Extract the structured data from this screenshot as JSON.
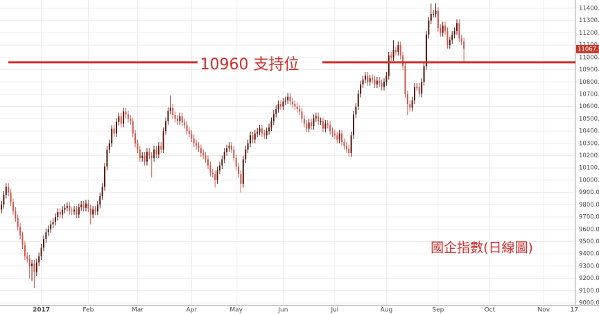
{
  "chart_data": {
    "type": "candlestick",
    "up_color": "#5a1a10",
    "down_color": "#d0574c",
    "grid_color": "#ececec",
    "support_color": "#d02f2b",
    "xlim": [
      -0.6,
      244.5
    ],
    "xticks": [
      {
        "value": 17,
        "label": "2017"
      },
      {
        "value": 37,
        "label": "Feb"
      },
      {
        "value": 58,
        "label": "Mar"
      },
      {
        "value": 81,
        "label": "Apr"
      },
      {
        "value": 100,
        "label": "May"
      },
      {
        "value": 120,
        "label": "Jun"
      },
      {
        "value": 142,
        "label": "Jul"
      },
      {
        "value": 164,
        "label": "Aug"
      },
      {
        "value": 186,
        "label": "Sep"
      },
      {
        "value": 208,
        "label": "Oct"
      },
      {
        "value": 231,
        "label": "Nov"
      },
      {
        "value": 244,
        "label": "17"
      }
    ],
    "ylim": [
      9000,
      11400
    ],
    "yticks": [
      {
        "value": 9000,
        "label": "9000.00"
      },
      {
        "value": 9100,
        "label": "9100.00"
      },
      {
        "value": 9200,
        "label": "9200.00"
      },
      {
        "value": 9300,
        "label": "9300.00"
      },
      {
        "value": 9400,
        "label": "9400.00"
      },
      {
        "value": 9500,
        "label": "9500.00"
      },
      {
        "value": 9600,
        "label": "9600.00"
      },
      {
        "value": 9700,
        "label": "9700.00"
      },
      {
        "value": 9800,
        "label": "9800.00"
      },
      {
        "value": 9900,
        "label": "9900.00"
      },
      {
        "value": 10000,
        "label": "10000.00"
      },
      {
        "value": 10100,
        "label": "10100.00"
      },
      {
        "value": 10200,
        "label": "10200.00"
      },
      {
        "value": 10300,
        "label": "10300.00"
      },
      {
        "value": 10400,
        "label": "10400.00"
      },
      {
        "value": 10500,
        "label": "10500.00"
      },
      {
        "value": 10600,
        "label": "10600.00"
      },
      {
        "value": 10700,
        "label": "10700.00"
      },
      {
        "value": 10800,
        "label": "10800.00"
      },
      {
        "value": 10900,
        "label": "10900.00"
      },
      {
        "value": 11000,
        "label": "11000.00"
      },
      {
        "value": 11100,
        "label": "11100.00"
      },
      {
        "value": 11200,
        "label": "11200.00"
      },
      {
        "value": 11300,
        "label": "11300.00"
      },
      {
        "value": 11400,
        "label": "11400.00"
      }
    ],
    "last_price": 11067.55,
    "support": {
      "value": 10960,
      "label": "10960 支持位"
    },
    "annotation": "國企指數(日線圖)",
    "open": [
      9760,
      9800,
      9880,
      9945,
      9900,
      9820,
      9750,
      9690,
      9620,
      9550,
      9470,
      9380,
      9360,
      9300,
      9320,
      9250,
      9330,
      9380,
      9450,
      9520,
      9575,
      9600,
      9640,
      9660,
      9700,
      9740,
      9720,
      9760,
      9775,
      9790,
      9750,
      9745,
      9760,
      9720,
      9780,
      9800,
      9775,
      9810,
      9770,
      9720,
      9760,
      9745,
      9800,
      9870,
      9945,
      10110,
      10250,
      10300,
      10420,
      10380,
      10475,
      10520,
      10460,
      10560,
      10535,
      10500,
      10480,
      10380,
      10300,
      10250,
      10180,
      10200,
      10150,
      10230,
      10200,
      10180,
      10250,
      10210,
      10280,
      10250,
      10400,
      10480,
      10565,
      10590,
      10530,
      10500,
      10480,
      10520,
      10470,
      10450,
      10400,
      10380,
      10340,
      10300,
      10280,
      10260,
      10220,
      10200,
      10170,
      10120,
      10060,
      10050,
      10000,
      10080,
      10120,
      10170,
      10230,
      10260,
      10280,
      10250,
      10180,
      10110,
      10050,
      9970,
      10170,
      10250,
      10300,
      10365,
      10330,
      10380,
      10395,
      10420,
      10380,
      10365,
      10400,
      10430,
      10480,
      10540,
      10580,
      10620,
      10600,
      10640,
      10650,
      10680,
      10640,
      10620,
      10600,
      10580,
      10560,
      10500,
      10460,
      10420,
      10470,
      10440,
      10505,
      10520,
      10480,
      10480,
      10420,
      10460,
      10450,
      10400,
      10380,
      10365,
      10330,
      10380,
      10310,
      10280,
      10255,
      10220,
      10365,
      10535,
      10600,
      10705,
      10780,
      10820,
      10850,
      10800,
      10830,
      10820,
      10780,
      10810,
      10790,
      10760,
      10800,
      10850,
      11015,
      11000,
      11060,
      11045,
      11100,
      11015,
      10930,
      10700,
      10620,
      10590,
      10650,
      10760,
      10760,
      10705,
      10800,
      10930,
      11185,
      11300,
      11355,
      11355,
      11380,
      11240,
      11200,
      11260,
      11215,
      11100,
      11140,
      11185,
      11215,
      11280,
      11155,
      11130
    ],
    "high": [
      9830,
      9910,
      9975,
      9975,
      9930,
      9850,
      9780,
      9720,
      9650,
      9580,
      9500,
      9410,
      9390,
      9350,
      9350,
      9360,
      9410,
      9480,
      9550,
      9605,
      9630,
      9670,
      9690,
      9730,
      9770,
      9770,
      9790,
      9805,
      9820,
      9820,
      9780,
      9790,
      9790,
      9810,
      9830,
      9830,
      9840,
      9840,
      9800,
      9790,
      9790,
      9830,
      9900,
      9975,
      10140,
      10280,
      10330,
      10450,
      10450,
      10505,
      10550,
      10550,
      10590,
      10590,
      10565,
      10530,
      10510,
      10410,
      10330,
      10280,
      10230,
      10230,
      10260,
      10260,
      10230,
      10280,
      10280,
      10310,
      10310,
      10430,
      10510,
      10595,
      10690,
      10620,
      10560,
      10530,
      10550,
      10550,
      10500,
      10480,
      10430,
      10410,
      10370,
      10330,
      10310,
      10290,
      10250,
      10230,
      10200,
      10150,
      10090,
      10080,
      10110,
      10150,
      10200,
      10260,
      10290,
      10310,
      10310,
      10280,
      10210,
      10140,
      10080,
      10200,
      10280,
      10330,
      10395,
      10395,
      10410,
      10425,
      10450,
      10450,
      10410,
      10430,
      10460,
      10510,
      10570,
      10610,
      10650,
      10650,
      10670,
      10680,
      10710,
      10710,
      10670,
      10650,
      10630,
      10610,
      10590,
      10530,
      10490,
      10500,
      10500,
      10535,
      10550,
      10550,
      10510,
      10510,
      10490,
      10490,
      10480,
      10430,
      10410,
      10395,
      10410,
      10410,
      10340,
      10310,
      10285,
      10395,
      10565,
      10630,
      10735,
      10810,
      10850,
      10880,
      10880,
      10860,
      10860,
      10850,
      10840,
      10840,
      10820,
      10830,
      10880,
      11045,
      11045,
      11140,
      11090,
      11130,
      11130,
      11045,
      10960,
      10730,
      10650,
      10680,
      10790,
      10790,
      10790,
      10830,
      10960,
      11215,
      11330,
      11440,
      11385,
      11440,
      11410,
      11270,
      11290,
      11290,
      11245,
      11170,
      11215,
      11245,
      11310,
      11310,
      11185,
      11160
    ],
    "low": [
      9730,
      9770,
      9850,
      9870,
      9790,
      9720,
      9660,
      9590,
      9520,
      9440,
      9350,
      9330,
      9200,
      9180,
      9120,
      9220,
      9300,
      9350,
      9420,
      9490,
      9545,
      9570,
      9610,
      9630,
      9670,
      9690,
      9690,
      9730,
      9745,
      9720,
      9715,
      9715,
      9690,
      9690,
      9750,
      9745,
      9745,
      9740,
      9640,
      9690,
      9715,
      9715,
      9770,
      9840,
      9915,
      10080,
      10220,
      10270,
      10350,
      10350,
      10445,
      10430,
      10430,
      10505,
      10470,
      10450,
      10350,
      10270,
      10220,
      10150,
      10150,
      10120,
      10120,
      10170,
      10020,
      10150,
      10180,
      10180,
      10220,
      10220,
      10370,
      10450,
      10535,
      10500,
      10470,
      10450,
      10450,
      10440,
      10420,
      10370,
      10350,
      10310,
      10270,
      10250,
      10230,
      10190,
      10170,
      10140,
      10090,
      10030,
      10020,
      9940,
      9970,
      10050,
      10090,
      10140,
      10200,
      10230,
      10220,
      10150,
      10080,
      10020,
      9900,
      9940,
      10140,
      10220,
      10270,
      10300,
      10300,
      10350,
      10365,
      10350,
      10335,
      10335,
      10370,
      10400,
      10450,
      10510,
      10550,
      10570,
      10570,
      10610,
      10620,
      10610,
      10590,
      10570,
      10550,
      10530,
      10470,
      10430,
      10390,
      10390,
      10410,
      10410,
      10475,
      10450,
      10450,
      10390,
      10390,
      10420,
      10370,
      10350,
      10335,
      10300,
      10300,
      10280,
      10250,
      10225,
      10190,
      10190,
      10335,
      10505,
      10570,
      10675,
      10750,
      10790,
      10770,
      10770,
      10790,
      10750,
      10750,
      10760,
      10730,
      10730,
      10770,
      10820,
      10970,
      10970,
      11015,
      11015,
      10985,
      10900,
      10670,
      10530,
      10560,
      10560,
      10620,
      10730,
      10675,
      10675,
      10770,
      10900,
      11155,
      11270,
      11325,
      11325,
      11210,
      11170,
      11170,
      11185,
      11070,
      11070,
      11110,
      11155,
      11185,
      11125,
      11100,
      10960
    ],
    "close": [
      9800,
      9880,
      9945,
      9900,
      9820,
      9750,
      9690,
      9620,
      9550,
      9470,
      9380,
      9360,
      9300,
      9320,
      9250,
      9330,
      9380,
      9450,
      9520,
      9575,
      9600,
      9640,
      9660,
      9700,
      9740,
      9720,
      9760,
      9775,
      9790,
      9750,
      9745,
      9760,
      9720,
      9780,
      9800,
      9775,
      9810,
      9770,
      9720,
      9760,
      9745,
      9800,
      9870,
      9945,
      10110,
      10250,
      10300,
      10420,
      10380,
      10475,
      10520,
      10460,
      10560,
      10535,
      10500,
      10480,
      10380,
      10300,
      10250,
      10180,
      10200,
      10150,
      10230,
      10200,
      10180,
      10250,
      10210,
      10280,
      10250,
      10400,
      10480,
      10565,
      10590,
      10530,
      10500,
      10480,
      10520,
      10470,
      10450,
      10400,
      10380,
      10340,
      10300,
      10280,
      10260,
      10220,
      10200,
      10170,
      10120,
      10060,
      10050,
      10000,
      10080,
      10120,
      10170,
      10230,
      10260,
      10280,
      10250,
      10180,
      10110,
      10050,
      9970,
      10170,
      10250,
      10300,
      10365,
      10330,
      10380,
      10395,
      10420,
      10380,
      10365,
      10400,
      10430,
      10480,
      10540,
      10580,
      10620,
      10600,
      10640,
      10650,
      10680,
      10640,
      10620,
      10600,
      10580,
      10560,
      10500,
      10460,
      10420,
      10470,
      10440,
      10505,
      10520,
      10480,
      10480,
      10420,
      10460,
      10450,
      10400,
      10380,
      10365,
      10330,
      10380,
      10310,
      10280,
      10255,
      10220,
      10365,
      10535,
      10600,
      10705,
      10780,
      10820,
      10850,
      10800,
      10830,
      10820,
      10780,
      10810,
      10790,
      10760,
      10800,
      10850,
      11015,
      11000,
      11060,
      11045,
      11100,
      11015,
      10930,
      10700,
      10620,
      10590,
      10650,
      10760,
      10760,
      10705,
      10800,
      10930,
      11185,
      11300,
      11355,
      11355,
      11380,
      11240,
      11200,
      11260,
      11215,
      11100,
      11140,
      11185,
      11215,
      11280,
      11155,
      11130,
      11067.55
    ]
  }
}
